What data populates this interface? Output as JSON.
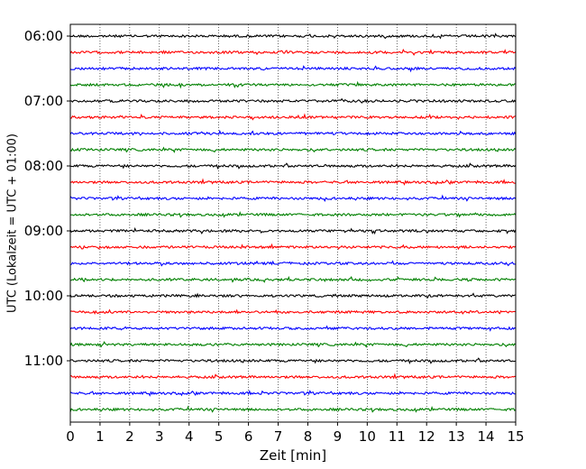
{
  "chart_data": {
    "type": "line",
    "title": "",
    "xlabel": "Zeit  [min]",
    "ylabel": "UTC (Lokalzeit = UTC + 01:00)",
    "xlim": [
      0,
      15
    ],
    "x_ticks": [
      "0",
      "1",
      "2",
      "3",
      "4",
      "5",
      "6",
      "7",
      "8",
      "9",
      "10",
      "11",
      "12",
      "13",
      "14",
      "15"
    ],
    "y_tick_labels": [
      "06:00",
      "07:00",
      "08:00",
      "09:00",
      "10:00",
      "11:00"
    ],
    "grid": "vertical dotted",
    "legend": "none",
    "trace_interval_minutes": 15,
    "trace_colors": [
      "#000000",
      "#ff0000",
      "#0000ff",
      "#008000"
    ],
    "series": [
      {
        "start": "06:00",
        "color": "#000000"
      },
      {
        "start": "06:15",
        "color": "#ff0000"
      },
      {
        "start": "06:30",
        "color": "#0000ff"
      },
      {
        "start": "06:45",
        "color": "#008000"
      },
      {
        "start": "07:00",
        "color": "#000000"
      },
      {
        "start": "07:15",
        "color": "#ff0000"
      },
      {
        "start": "07:30",
        "color": "#0000ff"
      },
      {
        "start": "07:45",
        "color": "#008000"
      },
      {
        "start": "08:00",
        "color": "#000000"
      },
      {
        "start": "08:15",
        "color": "#ff0000"
      },
      {
        "start": "08:30",
        "color": "#0000ff"
      },
      {
        "start": "08:45",
        "color": "#008000"
      },
      {
        "start": "09:00",
        "color": "#000000"
      },
      {
        "start": "09:15",
        "color": "#ff0000"
      },
      {
        "start": "09:30",
        "color": "#0000ff"
      },
      {
        "start": "09:45",
        "color": "#008000"
      },
      {
        "start": "10:00",
        "color": "#000000"
      },
      {
        "start": "10:15",
        "color": "#ff0000"
      },
      {
        "start": "10:30",
        "color": "#0000ff"
      },
      {
        "start": "10:45",
        "color": "#008000"
      },
      {
        "start": "11:00",
        "color": "#000000"
      },
      {
        "start": "11:15",
        "color": "#ff0000"
      },
      {
        "start": "11:30",
        "color": "#0000ff"
      },
      {
        "start": "11:45",
        "color": "#008000"
      }
    ]
  }
}
